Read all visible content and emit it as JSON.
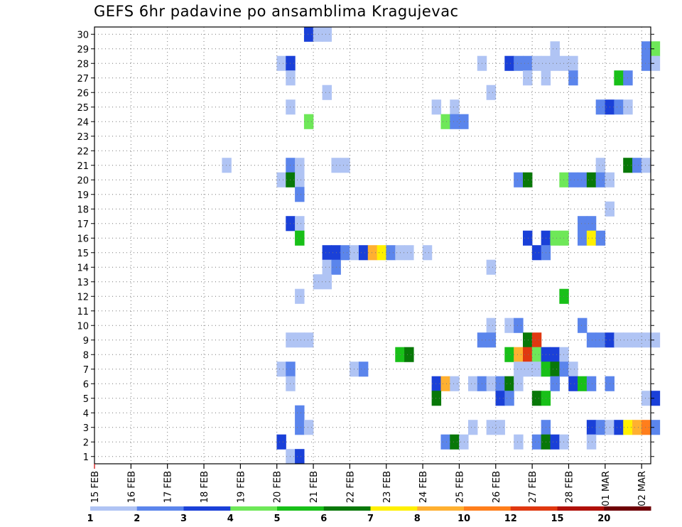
{
  "chart_data": {
    "type": "heatmap",
    "title": "GEFS 6hr padavine po ansamblima Kragujevac",
    "xlabel": "",
    "ylabel": "",
    "x_tick_labels": [
      "15 FEB",
      "16 FEB",
      "17 FEB",
      "18 FEB",
      "19 FEB",
      "20 FEB",
      "21 FEB",
      "22 FEB",
      "23 FEB",
      "24 FEB",
      "25 FEB",
      "26 FEB",
      "27 FEB",
      "28 FEB",
      "01 MAR",
      "02 MAR"
    ],
    "y_tick_labels": [
      "1",
      "2",
      "3",
      "4",
      "5",
      "6",
      "7",
      "8",
      "9",
      "10",
      "11",
      "12",
      "13",
      "14",
      "15",
      "16",
      "17",
      "18",
      "19",
      "20",
      "21",
      "22",
      "23",
      "24",
      "25",
      "26",
      "27",
      "28",
      "29",
      "30"
    ],
    "ylim": [
      0.5,
      30.5
    ],
    "x_unit": "6-hour steps from 15 FEB 00z",
    "xlim": [
      0,
      61
    ],
    "grid": true,
    "legend": {
      "position": "bottom",
      "labels": [
        "1",
        "2",
        "3",
        "4",
        "5",
        "6",
        "7",
        "8",
        "10",
        "12",
        "15",
        "20"
      ],
      "colors": [
        "#b0c4f4",
        "#5b85ec",
        "#1a40d8",
        "#6ee858",
        "#18c018",
        "#087808",
        "#fff000",
        "#ffb030",
        "#ff7e1c",
        "#e03810",
        "#b01008",
        "#6e0004"
      ]
    },
    "cells": [
      {
        "m": 30,
        "s": [
          [
            23,
            3
          ],
          [
            24,
            1
          ],
          [
            25,
            1
          ]
        ]
      },
      {
        "m": 29,
        "s": [
          [
            50,
            1
          ],
          [
            60,
            2
          ],
          [
            61,
            4
          ]
        ]
      },
      {
        "m": 28,
        "s": [
          [
            20,
            1
          ],
          [
            21,
            3
          ],
          [
            42,
            1
          ],
          [
            45,
            3
          ],
          [
            46,
            2
          ],
          [
            47,
            2
          ],
          [
            48,
            1
          ],
          [
            49,
            1
          ],
          [
            50,
            1
          ],
          [
            51,
            1
          ],
          [
            52,
            1
          ],
          [
            60,
            2
          ],
          [
            61,
            1
          ]
        ]
      },
      {
        "m": 27,
        "s": [
          [
            21,
            1
          ],
          [
            47,
            1
          ],
          [
            49,
            1
          ],
          [
            52,
            2
          ],
          [
            57,
            5
          ],
          [
            58,
            2
          ]
        ]
      },
      {
        "m": 26,
        "s": [
          [
            25,
            1
          ],
          [
            43,
            1
          ]
        ]
      },
      {
        "m": 25,
        "s": [
          [
            21,
            1
          ],
          [
            37,
            1
          ],
          [
            39,
            1
          ],
          [
            55,
            2
          ],
          [
            56,
            3
          ],
          [
            57,
            2
          ],
          [
            58,
            1
          ]
        ]
      },
      {
        "m": 24,
        "s": [
          [
            23,
            4
          ],
          [
            38,
            4
          ],
          [
            39,
            2
          ],
          [
            40,
            2
          ]
        ]
      },
      {
        "m": 21,
        "s": [
          [
            14,
            1
          ],
          [
            21,
            2
          ],
          [
            22,
            1
          ],
          [
            26,
            1
          ],
          [
            27,
            1
          ],
          [
            55,
            1
          ],
          [
            58,
            6
          ],
          [
            59,
            2
          ],
          [
            60,
            1
          ]
        ]
      },
      {
        "m": 20,
        "s": [
          [
            20,
            1
          ],
          [
            21,
            6
          ],
          [
            22,
            1
          ],
          [
            46,
            2
          ],
          [
            47,
            6
          ],
          [
            51,
            4
          ],
          [
            52,
            2
          ],
          [
            53,
            2
          ],
          [
            54,
            6
          ],
          [
            55,
            2
          ],
          [
            56,
            1
          ]
        ]
      },
      {
        "m": 19,
        "s": [
          [
            22,
            2
          ]
        ]
      },
      {
        "m": 18,
        "s": [
          [
            56,
            1
          ]
        ]
      },
      {
        "m": 17,
        "s": [
          [
            21,
            3
          ],
          [
            22,
            1
          ],
          [
            53,
            2
          ],
          [
            54,
            2
          ]
        ]
      },
      {
        "m": 16,
        "s": [
          [
            22,
            5
          ],
          [
            47,
            3
          ],
          [
            49,
            3
          ],
          [
            50,
            4
          ],
          [
            51,
            4
          ],
          [
            53,
            2
          ],
          [
            54,
            7
          ],
          [
            55,
            2
          ]
        ]
      },
      {
        "m": 15,
        "s": [
          [
            25,
            3
          ],
          [
            26,
            3
          ],
          [
            27,
            2
          ],
          [
            28,
            1
          ],
          [
            29,
            3
          ],
          [
            30,
            8
          ],
          [
            31,
            7
          ],
          [
            32,
            2
          ],
          [
            33,
            1
          ],
          [
            34,
            1
          ],
          [
            36,
            1
          ],
          [
            48,
            3
          ],
          [
            49,
            2
          ]
        ]
      },
      {
        "m": 14,
        "s": [
          [
            25,
            1
          ],
          [
            26,
            2
          ],
          [
            43,
            1
          ]
        ]
      },
      {
        "m": 13,
        "s": [
          [
            24,
            1
          ],
          [
            25,
            1
          ]
        ]
      },
      {
        "m": 12,
        "s": [
          [
            22,
            1
          ],
          [
            51,
            5
          ]
        ]
      },
      {
        "m": 10,
        "s": [
          [
            43,
            1
          ],
          [
            45,
            1
          ],
          [
            46,
            2
          ],
          [
            53,
            2
          ]
        ]
      },
      {
        "m": 9,
        "s": [
          [
            21,
            1
          ],
          [
            22,
            1
          ],
          [
            23,
            1
          ],
          [
            42,
            2
          ],
          [
            43,
            2
          ],
          [
            47,
            6
          ],
          [
            48,
            10
          ],
          [
            54,
            2
          ],
          [
            55,
            2
          ],
          [
            56,
            3
          ],
          [
            57,
            1
          ],
          [
            58,
            1
          ],
          [
            59,
            1
          ],
          [
            60,
            1
          ],
          [
            61,
            1
          ]
        ]
      },
      {
        "m": 8,
        "s": [
          [
            33,
            5
          ],
          [
            34,
            6
          ],
          [
            45,
            5
          ],
          [
            46,
            8
          ],
          [
            47,
            10
          ],
          [
            48,
            4
          ],
          [
            49,
            3
          ],
          [
            50,
            3
          ],
          [
            51,
            1
          ]
        ]
      },
      {
        "m": 7,
        "s": [
          [
            20,
            1
          ],
          [
            21,
            2
          ],
          [
            28,
            1
          ],
          [
            29,
            2
          ],
          [
            46,
            1
          ],
          [
            47,
            1
          ],
          [
            48,
            1
          ],
          [
            49,
            5
          ],
          [
            50,
            6
          ],
          [
            51,
            2
          ],
          [
            52,
            1
          ]
        ]
      },
      {
        "m": 6,
        "s": [
          [
            21,
            1
          ],
          [
            37,
            3
          ],
          [
            38,
            8
          ],
          [
            39,
            1
          ],
          [
            41,
            1
          ],
          [
            42,
            2
          ],
          [
            43,
            1
          ],
          [
            44,
            2
          ],
          [
            45,
            6
          ],
          [
            46,
            1
          ],
          [
            50,
            2
          ],
          [
            52,
            3
          ],
          [
            53,
            5
          ],
          [
            54,
            2
          ],
          [
            56,
            2
          ]
        ]
      },
      {
        "m": 5,
        "s": [
          [
            37,
            6
          ],
          [
            44,
            3
          ],
          [
            45,
            2
          ],
          [
            48,
            6
          ],
          [
            49,
            5
          ],
          [
            60,
            1
          ],
          [
            61,
            3
          ]
        ]
      },
      {
        "m": 4,
        "s": [
          [
            22,
            2
          ]
        ]
      },
      {
        "m": 3,
        "s": [
          [
            22,
            2
          ],
          [
            23,
            1
          ],
          [
            41,
            1
          ],
          [
            43,
            1
          ],
          [
            44,
            1
          ],
          [
            49,
            2
          ],
          [
            54,
            3
          ],
          [
            55,
            2
          ],
          [
            56,
            1
          ],
          [
            57,
            3
          ],
          [
            58,
            7
          ],
          [
            59,
            8
          ],
          [
            60,
            9
          ],
          [
            61,
            2
          ]
        ]
      },
      {
        "m": 2,
        "s": [
          [
            20,
            3
          ],
          [
            38,
            2
          ],
          [
            39,
            6
          ],
          [
            40,
            1
          ],
          [
            46,
            1
          ],
          [
            48,
            2
          ],
          [
            49,
            6
          ],
          [
            50,
            3
          ],
          [
            51,
            1
          ],
          [
            54,
            1
          ]
        ]
      },
      {
        "m": 1,
        "s": [
          [
            21,
            1
          ],
          [
            22,
            3
          ]
        ]
      }
    ]
  }
}
